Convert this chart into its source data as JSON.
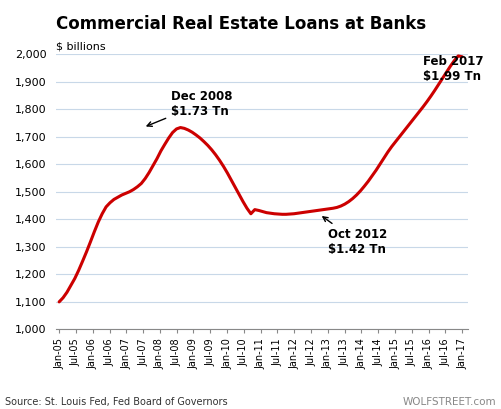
{
  "title": "Commercial Real Estate Loans at Banks",
  "ylabel": "$ billions",
  "source": "Source: St. Louis Fed, Fed Board of Governors",
  "watermark": "WOLFSTREET.com",
  "ylim": [
    1000,
    2000
  ],
  "line_color": "#cc0000",
  "line_width": 2.2,
  "bg_color": "#ffffff",
  "grid_color": "#c8d8e8",
  "x_tick_labels": [
    "Jan-05",
    "Jul-05",
    "Jan-06",
    "Jul-06",
    "Jan-07",
    "Jul-07",
    "Jan-08",
    "Jul-08",
    "Jan-09",
    "Jul-09",
    "Jan-10",
    "Jul-10",
    "Jan-11",
    "Jul-11",
    "Jan-12",
    "Jul-12",
    "Jan-13",
    "Jul-13",
    "Jan-14",
    "Jul-14",
    "Jan-15",
    "Jul-15",
    "Jan-16",
    "Jul-16",
    "Jan-17"
  ],
  "data_y": [
    1100,
    1115,
    1135,
    1160,
    1185,
    1215,
    1248,
    1282,
    1318,
    1355,
    1390,
    1420,
    1445,
    1460,
    1472,
    1480,
    1488,
    1494,
    1500,
    1508,
    1518,
    1530,
    1548,
    1570,
    1595,
    1620,
    1648,
    1672,
    1695,
    1715,
    1728,
    1733,
    1730,
    1724,
    1716,
    1706,
    1695,
    1682,
    1668,
    1652,
    1634,
    1614,
    1592,
    1568,
    1542,
    1516,
    1490,
    1464,
    1440,
    1420,
    1435,
    1432,
    1428,
    1424,
    1422,
    1420,
    1419,
    1418,
    1418,
    1419,
    1420,
    1422,
    1424,
    1426,
    1428,
    1430,
    1432,
    1434,
    1436,
    1438,
    1440,
    1443,
    1448,
    1455,
    1464,
    1475,
    1488,
    1503,
    1520,
    1538,
    1558,
    1578,
    1600,
    1622,
    1644,
    1664,
    1682,
    1700,
    1718,
    1736,
    1754,
    1772,
    1790,
    1808,
    1827,
    1847,
    1868,
    1890,
    1912,
    1934,
    1956,
    1976,
    1993,
    1990
  ]
}
